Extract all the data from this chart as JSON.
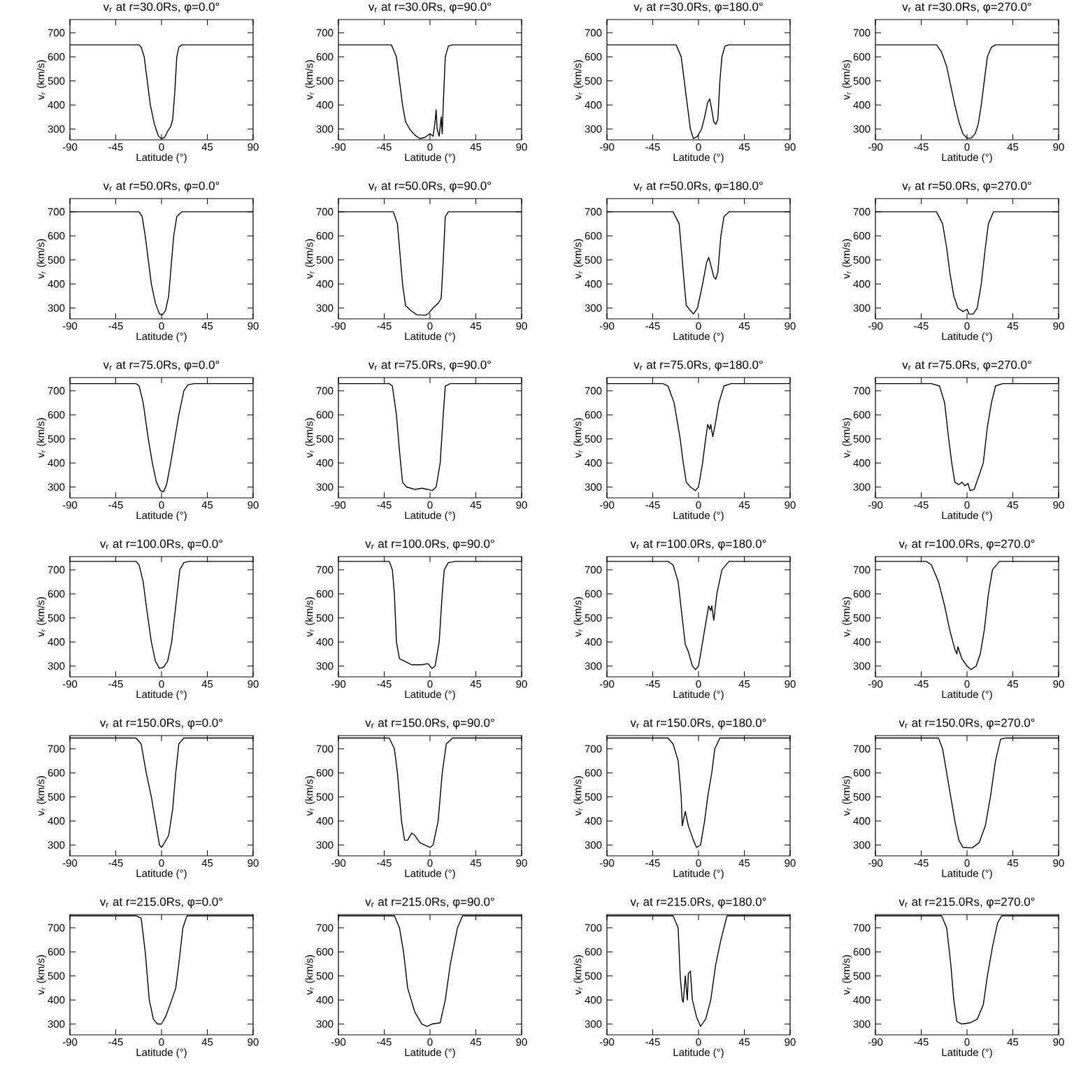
{
  "chart_data": [
    {
      "type": "line",
      "title": "v$_{r}$ at r=30.0Rs, φ=0.0°",
      "xlabel": "Latitude (°)",
      "ylabel": "v$_{r}$ (km/s)",
      "color": "#000000",
      "xlim": [
        -90,
        90
      ],
      "ylim": [
        255,
        755
      ],
      "xticks": [
        -90,
        -45,
        0,
        45,
        90
      ],
      "yticks": [
        300,
        400,
        500,
        600,
        700
      ],
      "x": [
        -90,
        -22,
        -20,
        -17,
        -14,
        -11,
        -7,
        -3,
        0,
        3,
        6,
        9,
        11,
        13,
        15,
        17,
        20,
        90
      ],
      "values": [
        650,
        650,
        640,
        600,
        500,
        400,
        320,
        270,
        260,
        265,
        290,
        310,
        340,
        450,
        600,
        640,
        650,
        650
      ]
    },
    {
      "type": "line",
      "title": "v$_{r}$ at r=30.0Rs, φ=90.0°",
      "xlabel": "Latitude (°)",
      "ylabel": "v$_{r}$ (km/s)",
      "color": "#000000",
      "xlim": [
        -90,
        90
      ],
      "ylim": [
        255,
        755
      ],
      "xticks": [
        -90,
        -45,
        0,
        45,
        90
      ],
      "yticks": [
        300,
        400,
        500,
        600,
        700
      ],
      "x": [
        -90,
        -38,
        -33,
        -30,
        -27,
        -24,
        -20,
        -15,
        -10,
        -5,
        0,
        3,
        5,
        6,
        7,
        9,
        11,
        12,
        13,
        15,
        18,
        22,
        90
      ],
      "values": [
        650,
        650,
        600,
        500,
        400,
        330,
        300,
        275,
        260,
        265,
        280,
        270,
        330,
        380,
        300,
        270,
        350,
        280,
        400,
        600,
        645,
        650,
        650
      ]
    },
    {
      "type": "line",
      "title": "v$_{r}$ at r=30.0Rs, φ=180.0°",
      "xlabel": "Latitude (°)",
      "ylabel": "v$_{r}$ (km/s)",
      "color": "#000000",
      "xlim": [
        -90,
        90
      ],
      "ylim": [
        255,
        755
      ],
      "xticks": [
        -90,
        -45,
        0,
        45,
        90
      ],
      "yticks": [
        300,
        400,
        500,
        600,
        700
      ],
      "x": [
        -90,
        -22,
        -17,
        -14,
        -11,
        -8,
        -5,
        -1,
        3,
        6,
        9,
        11,
        13,
        15,
        17,
        19,
        21,
        23,
        26,
        30,
        90
      ],
      "values": [
        650,
        650,
        600,
        500,
        400,
        300,
        260,
        270,
        300,
        350,
        410,
        425,
        380,
        330,
        320,
        340,
        500,
        600,
        645,
        650,
        650
      ]
    },
    {
      "type": "line",
      "title": "v$_{r}$ at r=30.0Rs, φ=270.0°",
      "xlabel": "Latitude (°)",
      "ylabel": "v$_{r}$ (km/s)",
      "color": "#000000",
      "xlim": [
        -90,
        90
      ],
      "ylim": [
        255,
        755
      ],
      "xticks": [
        -90,
        -45,
        0,
        45,
        90
      ],
      "yticks": [
        300,
        400,
        500,
        600,
        700
      ],
      "x": [
        -90,
        -30,
        -25,
        -20,
        -16,
        -12,
        -8,
        -4,
        0,
        4,
        8,
        11,
        14,
        17,
        20,
        24,
        28,
        90
      ],
      "values": [
        650,
        650,
        620,
        560,
        480,
        400,
        330,
        280,
        262,
        262,
        280,
        320,
        400,
        500,
        600,
        640,
        650,
        650
      ]
    },
    {
      "type": "line",
      "title": "v$_{r}$ at r=50.0Rs, φ=0.0°",
      "xlabel": "Latitude (°)",
      "ylabel": "v$_{r}$ (km/s)",
      "color": "#000000",
      "xlim": [
        -90,
        90
      ],
      "ylim": [
        255,
        755
      ],
      "xticks": [
        -90,
        -45,
        0,
        45,
        90
      ],
      "yticks": [
        300,
        400,
        500,
        600,
        700
      ],
      "x": [
        -90,
        -22,
        -19,
        -16,
        -13,
        -10,
        -6,
        -2,
        1,
        4,
        7,
        9,
        12,
        15,
        20,
        90
      ],
      "values": [
        700,
        700,
        680,
        600,
        500,
        400,
        320,
        275,
        272,
        290,
        350,
        450,
        600,
        680,
        700,
        700
      ]
    },
    {
      "type": "line",
      "title": "v$_{r}$ at r=50.0Rs, φ=90.0°",
      "xlabel": "Latitude (°)",
      "ylabel": "v$_{r}$ (km/s)",
      "color": "#000000",
      "xlim": [
        -90,
        90
      ],
      "ylim": [
        255,
        755
      ],
      "xticks": [
        -90,
        -45,
        0,
        45,
        90
      ],
      "yticks": [
        300,
        400,
        500,
        600,
        700
      ],
      "x": [
        -90,
        -36,
        -32,
        -29,
        -27,
        -24,
        -19,
        -13,
        -5,
        -2,
        3,
        8,
        11,
        13,
        15,
        18,
        90
      ],
      "values": [
        700,
        700,
        650,
        500,
        400,
        310,
        290,
        272,
        270,
        275,
        300,
        320,
        340,
        500,
        680,
        700,
        700
      ]
    },
    {
      "type": "line",
      "title": "v$_{r}$ at r=50.0Rs, φ=180.0°",
      "xlabel": "Latitude (°)",
      "ylabel": "v$_{r}$ (km/s)",
      "color": "#000000",
      "xlim": [
        -90,
        90
      ],
      "ylim": [
        255,
        755
      ],
      "xticks": [
        -90,
        -45,
        0,
        45,
        90
      ],
      "yticks": [
        300,
        400,
        500,
        600,
        700
      ],
      "x": [
        -90,
        -25,
        -19,
        -16,
        -14,
        -12,
        -8,
        -5,
        -1,
        4,
        8,
        10,
        12,
        15,
        17,
        19,
        22,
        25,
        30,
        90
      ],
      "values": [
        700,
        700,
        650,
        500,
        400,
        310,
        290,
        275,
        300,
        400,
        490,
        510,
        480,
        430,
        420,
        450,
        600,
        680,
        700,
        700
      ]
    },
    {
      "type": "line",
      "title": "v$_{r}$ at r=50.0Rs, φ=270.0°",
      "xlabel": "Latitude (°)",
      "ylabel": "v$_{r}$ (km/s)",
      "color": "#000000",
      "xlim": [
        -90,
        90
      ],
      "ylim": [
        255,
        755
      ],
      "xticks": [
        -90,
        -45,
        0,
        45,
        90
      ],
      "yticks": [
        300,
        400,
        500,
        600,
        700
      ],
      "x": [
        -90,
        -30,
        -24,
        -20,
        -17,
        -13,
        -9,
        -4,
        0,
        2,
        6,
        10,
        14,
        18,
        21,
        26,
        90
      ],
      "values": [
        700,
        700,
        650,
        550,
        450,
        350,
        300,
        285,
        295,
        275,
        275,
        300,
        400,
        550,
        650,
        700,
        700
      ]
    },
    {
      "type": "line",
      "title": "v$_{r}$ at r=75.0Rs, φ=0.0°",
      "xlabel": "Latitude (°)",
      "ylabel": "v$_{r}$ (km/s)",
      "color": "#000000",
      "xlim": [
        -90,
        90
      ],
      "ylim": [
        255,
        755
      ],
      "xticks": [
        -90,
        -45,
        0,
        45,
        90
      ],
      "yticks": [
        300,
        400,
        500,
        600,
        700
      ],
      "x": [
        -90,
        -25,
        -22,
        -18,
        -13,
        -9,
        -5,
        -1,
        2,
        5,
        9,
        13,
        17,
        22,
        26,
        32,
        90
      ],
      "values": [
        730,
        730,
        720,
        650,
        500,
        400,
        320,
        285,
        280,
        310,
        400,
        500,
        600,
        700,
        725,
        730,
        730
      ]
    },
    {
      "type": "line",
      "title": "v$_{r}$ at r=75.0Rs, φ=90.0°",
      "xlabel": "Latitude (°)",
      "ylabel": "v$_{r}$ (km/s)",
      "color": "#000000",
      "xlim": [
        -90,
        90
      ],
      "ylim": [
        255,
        755
      ],
      "xticks": [
        -90,
        -45,
        0,
        45,
        90
      ],
      "yticks": [
        300,
        400,
        500,
        600,
        700
      ],
      "x": [
        -90,
        -40,
        -37,
        -33,
        -30,
        -27,
        -23,
        -15,
        -8,
        -2,
        2,
        6,
        10,
        13,
        15,
        20,
        90
      ],
      "values": [
        730,
        730,
        720,
        600,
        450,
        320,
        300,
        290,
        295,
        290,
        285,
        300,
        400,
        600,
        720,
        730,
        730
      ]
    },
    {
      "type": "line",
      "title": "v$_{r}$ at r=75.0Rs, φ=180.0°",
      "xlabel": "Latitude (°)",
      "ylabel": "v$_{r}$ (km/s)",
      "color": "#000000",
      "xlim": [
        -90,
        90
      ],
      "ylim": [
        255,
        755
      ],
      "xticks": [
        -90,
        -45,
        0,
        45,
        90
      ],
      "yticks": [
        300,
        400,
        500,
        600,
        700
      ],
      "x": [
        -90,
        -35,
        -30,
        -24,
        -18,
        -15,
        -12,
        -8,
        -3,
        0,
        4,
        7,
        9,
        11,
        12,
        14,
        16,
        20,
        25,
        32,
        90
      ],
      "values": [
        730,
        730,
        720,
        650,
        500,
        400,
        320,
        300,
        285,
        300,
        400,
        500,
        560,
        540,
        560,
        510,
        550,
        650,
        720,
        730,
        730
      ]
    },
    {
      "type": "line",
      "title": "v$_{r}$ at r=75.0Rs, φ=270.0°",
      "xlabel": "Latitude (°)",
      "ylabel": "v$_{r}$ (km/s)",
      "color": "#000000",
      "xlim": [
        -90,
        90
      ],
      "ylim": [
        255,
        755
      ],
      "xticks": [
        -90,
        -45,
        0,
        45,
        90
      ],
      "yticks": [
        300,
        400,
        500,
        600,
        700
      ],
      "x": [
        -90,
        -35,
        -27,
        -22,
        -18,
        -15,
        -12,
        -8,
        -5,
        -2,
        1,
        3,
        7,
        12,
        16,
        20,
        24,
        28,
        35,
        90
      ],
      "values": [
        730,
        730,
        720,
        650,
        500,
        400,
        320,
        310,
        320,
        305,
        315,
        285,
        290,
        350,
        400,
        550,
        650,
        720,
        730,
        730
      ]
    },
    {
      "type": "line",
      "title": "v$_{r}$ at r=100.0Rs, φ=0.0°",
      "xlabel": "Latitude (°)",
      "ylabel": "v$_{r}$ (km/s)",
      "color": "#000000",
      "xlim": [
        -90,
        90
      ],
      "ylim": [
        255,
        755
      ],
      "xticks": [
        -90,
        -45,
        0,
        45,
        90
      ],
      "yticks": [
        300,
        400,
        500,
        600,
        700
      ],
      "x": [
        -90,
        -25,
        -22,
        -18,
        -15,
        -10,
        -6,
        -2,
        2,
        6,
        10,
        14,
        18,
        22,
        27,
        90
      ],
      "values": [
        735,
        735,
        720,
        650,
        550,
        400,
        320,
        290,
        295,
        320,
        400,
        550,
        700,
        730,
        735,
        735
      ]
    },
    {
      "type": "line",
      "title": "v$_{r}$ at r=100.0Rs, φ=90.0°",
      "xlabel": "Latitude (°)",
      "ylabel": "v$_{r}$ (km/s)",
      "color": "#000000",
      "xlim": [
        -90,
        90
      ],
      "ylim": [
        255,
        755
      ],
      "xticks": [
        -90,
        -45,
        0,
        45,
        90
      ],
      "yticks": [
        300,
        400,
        500,
        600,
        700
      ],
      "x": [
        -90,
        -40,
        -37,
        -35,
        -33,
        -30,
        -25,
        -18,
        -8,
        -2,
        2,
        5,
        9,
        12,
        14,
        18,
        25,
        90
      ],
      "values": [
        735,
        735,
        700,
        600,
        400,
        330,
        320,
        305,
        305,
        310,
        290,
        300,
        400,
        600,
        700,
        730,
        735,
        735
      ]
    },
    {
      "type": "line",
      "title": "v$_{r}$ at r=100.0Rs, φ=180.0°",
      "xlabel": "Latitude (°)",
      "ylabel": "v$_{r}$ (km/s)",
      "color": "#000000",
      "xlim": [
        -90,
        90
      ],
      "ylim": [
        255,
        755
      ],
      "xticks": [
        -90,
        -45,
        0,
        45,
        90
      ],
      "yticks": [
        300,
        400,
        500,
        600,
        700
      ],
      "x": [
        -90,
        -30,
        -25,
        -20,
        -16,
        -13,
        -10,
        -6,
        -3,
        0,
        4,
        8,
        10,
        12,
        13,
        15,
        18,
        23,
        30,
        90
      ],
      "values": [
        735,
        735,
        720,
        650,
        500,
        390,
        360,
        300,
        285,
        300,
        400,
        500,
        550,
        530,
        550,
        490,
        600,
        700,
        735,
        735
      ]
    },
    {
      "type": "line",
      "title": "v$_{r}$ at r=100.0Rs, φ=270.0°",
      "xlabel": "Latitude (°)",
      "ylabel": "v$_{r}$ (km/s)",
      "color": "#000000",
      "xlim": [
        -90,
        90
      ],
      "ylim": [
        255,
        755
      ],
      "xticks": [
        -90,
        -45,
        0,
        45,
        90
      ],
      "yticks": [
        300,
        400,
        500,
        600,
        700
      ],
      "x": [
        -90,
        -40,
        -35,
        -28,
        -22,
        -17,
        -12,
        -10,
        -9,
        -5,
        0,
        4,
        9,
        13,
        17,
        21,
        25,
        32,
        90
      ],
      "values": [
        735,
        735,
        720,
        650,
        550,
        450,
        370,
        350,
        380,
        330,
        300,
        285,
        300,
        350,
        450,
        600,
        700,
        735,
        735
      ]
    },
    {
      "type": "line",
      "title": "v$_{r}$ at r=150.0Rs, φ=0.0°",
      "xlabel": "Latitude (°)",
      "ylabel": "v$_{r}$ (km/s)",
      "color": "#000000",
      "xlim": [
        -90,
        90
      ],
      "ylim": [
        255,
        755
      ],
      "xticks": [
        -90,
        -45,
        0,
        45,
        90
      ],
      "yticks": [
        300,
        400,
        500,
        600,
        700
      ],
      "x": [
        -90,
        -25,
        -20,
        -15,
        -10,
        -6,
        -2,
        0,
        3,
        7,
        11,
        14,
        17,
        22,
        90
      ],
      "values": [
        745,
        745,
        720,
        600,
        500,
        400,
        300,
        290,
        310,
        340,
        450,
        600,
        720,
        745,
        745
      ]
    },
    {
      "type": "line",
      "title": "v$_{r}$ at r=150.0Rs, φ=90.0°",
      "xlabel": "Latitude (°)",
      "ylabel": "v$_{r}$ (km/s)",
      "color": "#000000",
      "xlim": [
        -90,
        90
      ],
      "ylim": [
        255,
        755
      ],
      "xticks": [
        -90,
        -45,
        0,
        45,
        90
      ],
      "yticks": [
        300,
        400,
        500,
        600,
        700
      ],
      "x": [
        -90,
        -40,
        -35,
        -32,
        -28,
        -25,
        -22,
        -18,
        -15,
        -10,
        -5,
        0,
        3,
        8,
        12,
        16,
        22,
        90
      ],
      "values": [
        745,
        745,
        700,
        600,
        400,
        320,
        320,
        350,
        340,
        310,
        300,
        290,
        300,
        400,
        600,
        720,
        745,
        745
      ]
    },
    {
      "type": "line",
      "title": "v$_{r}$ at r=150.0Rs, φ=180.0°",
      "xlabel": "Latitude (°)",
      "ylabel": "v$_{r}$ (km/s)",
      "color": "#000000",
      "xlim": [
        -90,
        90
      ],
      "ylim": [
        255,
        755
      ],
      "xticks": [
        -90,
        -45,
        0,
        45,
        90
      ],
      "yticks": [
        300,
        400,
        500,
        600,
        700
      ],
      "x": [
        -90,
        -30,
        -25,
        -20,
        -17,
        -16,
        -14,
        -13,
        -10,
        -5,
        -2,
        2,
        6,
        9,
        13,
        16,
        21,
        90
      ],
      "values": [
        745,
        745,
        720,
        650,
        500,
        380,
        420,
        440,
        380,
        320,
        290,
        300,
        400,
        500,
        600,
        700,
        745,
        745
      ]
    },
    {
      "type": "line",
      "title": "v$_{r}$ at r=150.0Rs, φ=270.0°",
      "xlabel": "Latitude (°)",
      "ylabel": "v$_{r}$ (km/s)",
      "color": "#000000",
      "xlim": [
        -90,
        90
      ],
      "ylim": [
        255,
        755
      ],
      "xticks": [
        -90,
        -45,
        0,
        45,
        90
      ],
      "yticks": [
        300,
        400,
        500,
        600,
        700
      ],
      "x": [
        -90,
        -28,
        -24,
        -20,
        -16,
        -12,
        -8,
        -4,
        5,
        12,
        18,
        23,
        28,
        33,
        38,
        90
      ],
      "values": [
        745,
        745,
        700,
        600,
        500,
        400,
        320,
        290,
        288,
        310,
        380,
        500,
        650,
        740,
        745,
        745
      ]
    },
    {
      "type": "line",
      "title": "v$_{r}$ at r=215.0Rs, φ=0.0°",
      "xlabel": "Latitude (°)",
      "ylabel": "v$_{r}$ (km/s)",
      "color": "#000000",
      "xlim": [
        -90,
        90
      ],
      "ylim": [
        255,
        755
      ],
      "xticks": [
        -90,
        -45,
        0,
        45,
        90
      ],
      "yticks": [
        300,
        400,
        500,
        600,
        700
      ],
      "x": [
        -90,
        -25,
        -20,
        -16,
        -12,
        -8,
        -4,
        0,
        4,
        10,
        14,
        17,
        21,
        25,
        90
      ],
      "values": [
        750,
        750,
        740,
        600,
        400,
        320,
        300,
        300,
        330,
        400,
        450,
        550,
        700,
        750,
        750
      ]
    },
    {
      "type": "line",
      "title": "v$_{r}$ at r=215.0Rs, φ=90.0°",
      "xlabel": "Latitude (°)",
      "ylabel": "v$_{r}$ (km/s)",
      "color": "#000000",
      "xlim": [
        -90,
        90
      ],
      "ylim": [
        255,
        755
      ],
      "xticks": [
        -90,
        -45,
        0,
        45,
        90
      ],
      "yticks": [
        300,
        400,
        500,
        600,
        700
      ],
      "x": [
        -90,
        -35,
        -30,
        -26,
        -22,
        -15,
        -8,
        -3,
        2,
        10,
        15,
        20,
        27,
        32,
        90
      ],
      "values": [
        750,
        750,
        700,
        600,
        450,
        350,
        300,
        290,
        300,
        305,
        400,
        550,
        700,
        750,
        750
      ]
    },
    {
      "type": "line",
      "title": "v$_{r}$ at r=215.0Rs, φ=180.0°",
      "xlabel": "Latitude (°)",
      "ylabel": "v$_{r}$ (km/s)",
      "color": "#000000",
      "xlim": [
        -90,
        90
      ],
      "ylim": [
        255,
        755
      ],
      "xticks": [
        -90,
        -45,
        0,
        45,
        90
      ],
      "yticks": [
        300,
        400,
        500,
        600,
        700
      ],
      "x": [
        -90,
        -25,
        -20,
        -18,
        -16,
        -15,
        -13,
        -11,
        -10,
        -8,
        -6,
        -2,
        2,
        7,
        12,
        17,
        22,
        28,
        90
      ],
      "values": [
        750,
        750,
        700,
        500,
        400,
        390,
        500,
        400,
        510,
        520,
        400,
        330,
        290,
        320,
        400,
        550,
        650,
        750,
        750
      ]
    },
    {
      "type": "line",
      "title": "v$_{r}$ at r=215.0Rs, φ=270.0°",
      "xlabel": "Latitude (°)",
      "ylabel": "v$_{r}$ (km/s)",
      "color": "#000000",
      "xlim": [
        -90,
        90
      ],
      "ylim": [
        255,
        755
      ],
      "xticks": [
        -90,
        -45,
        0,
        45,
        90
      ],
      "yticks": [
        300,
        400,
        500,
        600,
        700
      ],
      "x": [
        -90,
        -25,
        -20,
        -16,
        -13,
        -10,
        -5,
        3,
        10,
        16,
        20,
        25,
        30,
        34,
        90
      ],
      "values": [
        750,
        750,
        700,
        550,
        400,
        310,
        300,
        305,
        320,
        380,
        500,
        620,
        720,
        750,
        750
      ]
    }
  ]
}
